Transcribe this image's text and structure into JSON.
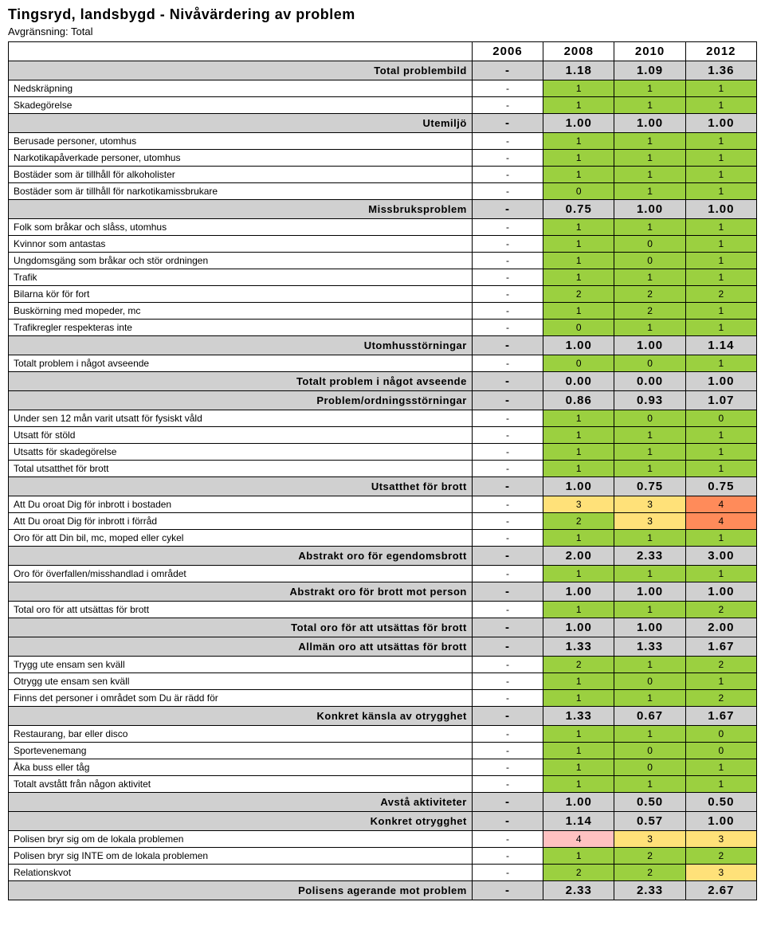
{
  "title": "Tingsryd, landsbygd - Nivåvärdering av problem",
  "subtitle": "Avgränsning: Total",
  "years": [
    "2006",
    "2008",
    "2010",
    "2012"
  ],
  "colors": {
    "green": "#9bd040",
    "yellow": "#ffe179",
    "red": "#ff8b5a",
    "pink": "#ffc1c1",
    "header": "#d0d0d0",
    "cell_bg": "#ffffff",
    "border": "#000000"
  },
  "cell_colors": {
    "0": "#9bd040",
    "1": "#9bd040",
    "2": "#9bd040",
    "3": "#ffe179",
    "4": "#ff8b5a",
    "-": "none"
  },
  "rows": [
    {
      "type": "header",
      "label": "Total problembild",
      "vals": [
        "-",
        "1.18",
        "1.09",
        "1.36"
      ]
    },
    {
      "type": "data",
      "label": "Nedskräpning",
      "vals": [
        "-",
        "1",
        "1",
        "1"
      ]
    },
    {
      "type": "data",
      "label": "Skadegörelse",
      "vals": [
        "-",
        "1",
        "1",
        "1"
      ]
    },
    {
      "type": "header",
      "label": "Utemiljö",
      "vals": [
        "-",
        "1.00",
        "1.00",
        "1.00"
      ]
    },
    {
      "type": "data",
      "label": "Berusade personer, utomhus",
      "vals": [
        "-",
        "1",
        "1",
        "1"
      ]
    },
    {
      "type": "data",
      "label": "Narkotikapåverkade personer, utomhus",
      "vals": [
        "-",
        "1",
        "1",
        "1"
      ]
    },
    {
      "type": "data",
      "label": "Bostäder som är tillhåll för alkoholister",
      "vals": [
        "-",
        "1",
        "1",
        "1"
      ]
    },
    {
      "type": "data",
      "label": "Bostäder som är tillhåll för narkotikamissbrukare",
      "vals": [
        "-",
        "0",
        "1",
        "1"
      ]
    },
    {
      "type": "header",
      "label": "Missbruksproblem",
      "vals": [
        "-",
        "0.75",
        "1.00",
        "1.00"
      ]
    },
    {
      "type": "data",
      "label": "Folk som bråkar och slåss, utomhus",
      "vals": [
        "-",
        "1",
        "1",
        "1"
      ]
    },
    {
      "type": "data",
      "label": "Kvinnor som antastas",
      "vals": [
        "-",
        "1",
        "0",
        "1"
      ]
    },
    {
      "type": "data",
      "label": "Ungdomsgäng som bråkar och stör ordningen",
      "vals": [
        "-",
        "1",
        "0",
        "1"
      ]
    },
    {
      "type": "data",
      "label": "Trafik",
      "vals": [
        "-",
        "1",
        "1",
        "1"
      ]
    },
    {
      "type": "data",
      "label": "Bilarna kör för fort",
      "vals": [
        "-",
        "2",
        "2",
        "2"
      ]
    },
    {
      "type": "data",
      "label": "Buskörning med mopeder, mc",
      "vals": [
        "-",
        "1",
        "2",
        "1"
      ]
    },
    {
      "type": "data",
      "label": "Trafikregler respekteras inte",
      "vals": [
        "-",
        "0",
        "1",
        "1"
      ]
    },
    {
      "type": "header",
      "label": "Utomhusstörningar",
      "vals": [
        "-",
        "1.00",
        "1.00",
        "1.14"
      ]
    },
    {
      "type": "data",
      "label": "Totalt problem i något avseende",
      "vals": [
        "-",
        "0",
        "0",
        "1"
      ]
    },
    {
      "type": "header",
      "label": "Totalt problem i något avseende",
      "vals": [
        "-",
        "0.00",
        "0.00",
        "1.00"
      ]
    },
    {
      "type": "header",
      "label": "Problem/ordningsstörningar",
      "vals": [
        "-",
        "0.86",
        "0.93",
        "1.07"
      ]
    },
    {
      "type": "data",
      "label": "Under sen 12 mån varit utsatt för fysiskt våld",
      "vals": [
        "-",
        "1",
        "0",
        "0"
      ]
    },
    {
      "type": "data",
      "label": "Utsatt för stöld",
      "vals": [
        "-",
        "1",
        "1",
        "1"
      ]
    },
    {
      "type": "data",
      "label": "Utsatts för skadegörelse",
      "vals": [
        "-",
        "1",
        "1",
        "1"
      ]
    },
    {
      "type": "data",
      "label": "Total utsatthet för brott",
      "vals": [
        "-",
        "1",
        "1",
        "1"
      ]
    },
    {
      "type": "header",
      "label": "Utsatthet för brott",
      "vals": [
        "-",
        "1.00",
        "0.75",
        "0.75"
      ]
    },
    {
      "type": "data",
      "label": "Att Du oroat Dig för inbrott i bostaden",
      "vals": [
        "-",
        "3",
        "3",
        "4"
      ]
    },
    {
      "type": "data",
      "label": "Att Du oroat Dig för inbrott i förråd",
      "vals": [
        "-",
        "2",
        "3",
        "4"
      ]
    },
    {
      "type": "data",
      "label": "Oro för att Din bil, mc, moped eller cykel",
      "vals": [
        "-",
        "1",
        "1",
        "1"
      ]
    },
    {
      "type": "header",
      "label": "Abstrakt oro för egendomsbrott",
      "vals": [
        "-",
        "2.00",
        "2.33",
        "3.00"
      ]
    },
    {
      "type": "data",
      "label": "Oro för överfallen/misshandlad i området",
      "vals": [
        "-",
        "1",
        "1",
        "1"
      ]
    },
    {
      "type": "header",
      "label": "Abstrakt oro för brott mot person",
      "vals": [
        "-",
        "1.00",
        "1.00",
        "1.00"
      ]
    },
    {
      "type": "data",
      "label": "Total oro för att utsättas för brott",
      "vals": [
        "-",
        "1",
        "1",
        "2"
      ]
    },
    {
      "type": "header",
      "label": "Total oro för att utsättas för brott",
      "vals": [
        "-",
        "1.00",
        "1.00",
        "2.00"
      ]
    },
    {
      "type": "header",
      "label": "Allmän oro att utsättas för brott",
      "vals": [
        "-",
        "1.33",
        "1.33",
        "1.67"
      ]
    },
    {
      "type": "data",
      "label": "Trygg ute ensam sen kväll",
      "vals": [
        "-",
        "2",
        "1",
        "2"
      ]
    },
    {
      "type": "data",
      "label": "Otrygg ute ensam sen kväll",
      "vals": [
        "-",
        "1",
        "0",
        "1"
      ]
    },
    {
      "type": "data",
      "label": "Finns det personer i området som Du är rädd för",
      "vals": [
        "-",
        "1",
        "1",
        "2"
      ]
    },
    {
      "type": "header",
      "label": "Konkret känsla av otrygghet",
      "vals": [
        "-",
        "1.33",
        "0.67",
        "1.67"
      ]
    },
    {
      "type": "data",
      "label": "Restaurang, bar eller disco",
      "vals": [
        "-",
        "1",
        "1",
        "0"
      ]
    },
    {
      "type": "data",
      "label": "Sportevenemang",
      "vals": [
        "-",
        "1",
        "0",
        "0"
      ]
    },
    {
      "type": "data",
      "label": "Åka buss eller tåg",
      "vals": [
        "-",
        "1",
        "0",
        "1"
      ]
    },
    {
      "type": "data",
      "label": "Totalt avstått från någon aktivitet",
      "vals": [
        "-",
        "1",
        "1",
        "1"
      ]
    },
    {
      "type": "header",
      "label": "Avstå aktiviteter",
      "vals": [
        "-",
        "1.00",
        "0.50",
        "0.50"
      ]
    },
    {
      "type": "header",
      "label": "Konkret otrygghet",
      "vals": [
        "-",
        "1.14",
        "0.57",
        "1.00"
      ]
    },
    {
      "type": "data",
      "label": "Polisen bryr sig om de lokala problemen",
      "vals": [
        "-",
        "4",
        "3",
        "3"
      ],
      "special_colors": [
        "",
        "#ffc1c1",
        "#ffe179",
        "#ffe179"
      ]
    },
    {
      "type": "data",
      "label": "Polisen bryr sig INTE om de lokala problemen",
      "vals": [
        "-",
        "1",
        "2",
        "2"
      ]
    },
    {
      "type": "data",
      "label": "Relationskvot",
      "vals": [
        "-",
        "2",
        "2",
        "3"
      ],
      "special_colors": [
        "",
        "#9bd040",
        "#9bd040",
        "#ffe179"
      ]
    },
    {
      "type": "header",
      "label": "Polisens agerande mot problem",
      "vals": [
        "-",
        "2.33",
        "2.33",
        "2.67"
      ]
    }
  ]
}
